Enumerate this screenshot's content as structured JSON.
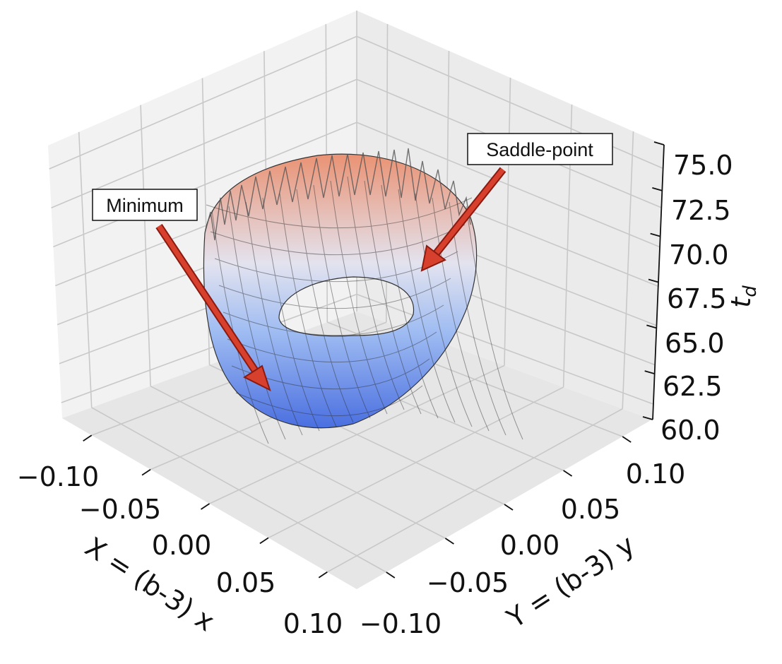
{
  "chart_data": {
    "type": "surface",
    "x_label": "X = (b-3) x",
    "y_label": "Y = (b-3) y",
    "z_label": "t",
    "z_label_subscript": "d",
    "x_ticks": [
      "−0.10",
      "−0.05",
      "0.00",
      "0.05",
      "0.10"
    ],
    "y_ticks": [
      "−0.10",
      "−0.05",
      "0.00",
      "0.05",
      "0.10"
    ],
    "z_ticks": [
      "60.0",
      "62.5",
      "65.0",
      "67.5",
      "70.0",
      "72.5",
      "75.0"
    ],
    "x_range": [
      -0.1,
      0.1
    ],
    "y_range": [
      -0.1,
      0.1
    ],
    "z_range": [
      60,
      75
    ],
    "grid": true,
    "colormap": "coolwarm",
    "annotations": [
      {
        "text": "Minimum"
      },
      {
        "text": "Saddle-point"
      }
    ]
  }
}
